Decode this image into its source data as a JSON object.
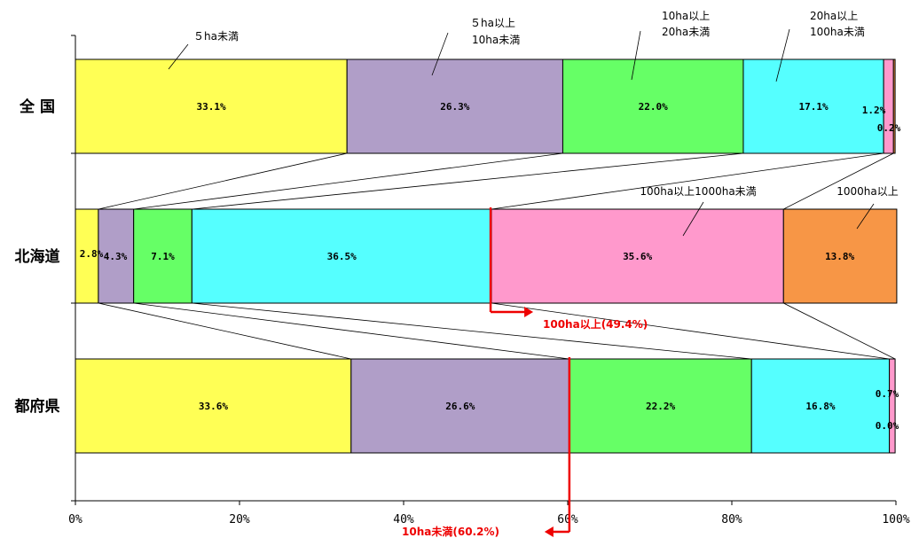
{
  "chart_data": {
    "type": "bar",
    "orientation": "horizontal",
    "stacked": "percent",
    "categories": [
      "全 国",
      "北海道",
      "都府県"
    ],
    "series": [
      {
        "name": "５ha未満",
        "color": "#ffff55",
        "values": [
          33.1,
          2.8,
          33.6
        ]
      },
      {
        "name": "５ha以上\n10ha未満",
        "color": "#b09ec8",
        "values": [
          26.3,
          4.3,
          26.6
        ]
      },
      {
        "name": "10ha以上\n20ha未満",
        "color": "#66ff66",
        "values": [
          22.0,
          7.1,
          22.2
        ]
      },
      {
        "name": "20ha以上\n100ha未満",
        "color": "#55ffff",
        "values": [
          17.1,
          36.5,
          16.8
        ]
      },
      {
        "name": "100ha以上1000ha未満",
        "color": "#ff99cc",
        "values": [
          1.2,
          35.6,
          0.7
        ]
      },
      {
        "name": "1000ha以上",
        "color": "#f79646",
        "values": [
          0.2,
          13.8,
          0.0
        ]
      }
    ],
    "data_labels": [
      [
        "33.1%",
        "26.3%",
        "22.0%",
        "17.1%",
        "1.2%",
        "0.2%"
      ],
      [
        "2.8%",
        "4.3%",
        "7.1%",
        "36.5%",
        "35.6%",
        "13.8%"
      ],
      [
        "33.6%",
        "26.6%",
        "22.2%",
        "16.8%",
        "0.7%",
        "0.0%"
      ]
    ],
    "x_ticks": [
      "0%",
      "20%",
      "40%",
      "60%",
      "80%",
      "100%"
    ],
    "xlim": [
      0,
      100
    ],
    "annotations": [
      {
        "text": "100ha以上(49.4%)",
        "at_percent": 50.6,
        "category": "北海道",
        "color": "#ee0000"
      },
      {
        "text": "10ha未満(60.2%)",
        "at_percent": 60.2,
        "category": "都府県",
        "color": "#ee0000"
      }
    ],
    "connector_lines": true,
    "legend": "callouts"
  }
}
